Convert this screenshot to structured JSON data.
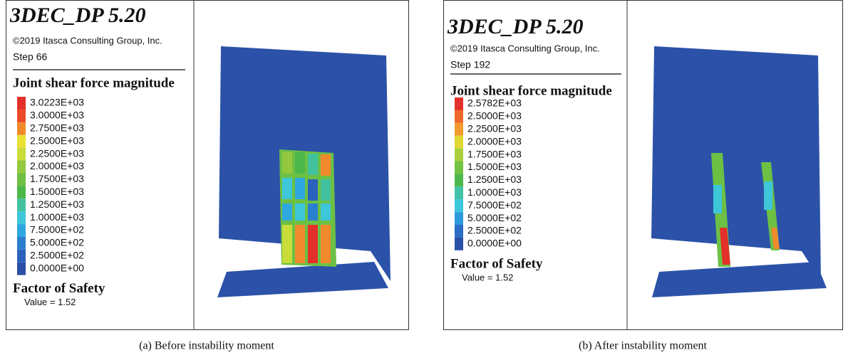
{
  "panels": [
    {
      "title": "3DEC_DP 5.20",
      "copyright": "©2019 Itasca Consulting Group, Inc.",
      "step": "Step 66",
      "legend_title": "Joint shear force magnitude",
      "legend": [
        "3.0223E+03",
        "3.0000E+03",
        "2.7500E+03",
        "2.5000E+03",
        "2.2500E+03",
        "2.0000E+03",
        "1.7500E+03",
        "1.5000E+03",
        "1.2500E+03",
        "1.0000E+03",
        "7.5000E+02",
        "5.0000E+02",
        "2.5000E+02",
        "0.0000E+00"
      ],
      "legend_colors": [
        "#e3302a",
        "#ea4a28",
        "#f08a2c",
        "#e9e132",
        "#c9dc3a",
        "#93c83f",
        "#6ebf42",
        "#4cb74b",
        "#41c19d",
        "#3dc7d9",
        "#2fa8e1",
        "#2a80cf",
        "#2a62bd",
        "#2a4fa6"
      ],
      "fos_title": "Factor of Safety",
      "fos_value": "Value = 1.52",
      "caption": "(a) Before instability moment"
    },
    {
      "title": "3DEC_DP 5.20",
      "copyright": "©2019 Itasca Consulting Group, Inc.",
      "step": "Step 192",
      "legend_title": "Joint shear force magnitude",
      "legend": [
        "2.5782E+03",
        "2.5000E+03",
        "2.2500E+03",
        "2.0000E+03",
        "1.7500E+03",
        "1.5000E+03",
        "1.2500E+03",
        "1.0000E+03",
        "7.5000E+02",
        "5.0000E+02",
        "2.5000E+02",
        "0.0000E+00"
      ],
      "legend_colors": [
        "#e3302a",
        "#ef6a2a",
        "#f29a2e",
        "#dfd834",
        "#a9d03c",
        "#74c241",
        "#4eb84c",
        "#41c3a8",
        "#3cc6dc",
        "#2d98dc",
        "#2a6cc6",
        "#2a4fa6"
      ],
      "fos_title": "Factor of Safety",
      "fos_value": "Value = 1.52",
      "caption": "(b) After instability moment"
    }
  ]
}
